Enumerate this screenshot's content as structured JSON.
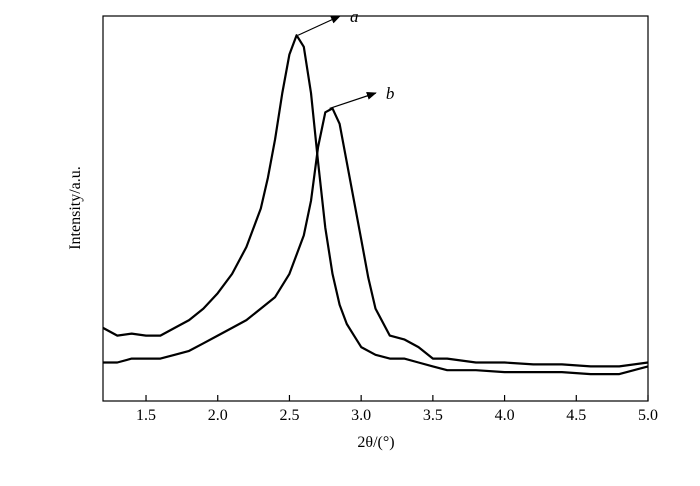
{
  "chart_data": {
    "type": "line",
    "title": "",
    "xlabel": "2θ/(°)",
    "ylabel": "Intensity/a.u.",
    "xlim": [
      1.2,
      5.0
    ],
    "ylim": [
      0,
      1
    ],
    "x_ticks": [
      1.5,
      2.0,
      2.5,
      3.0,
      3.5,
      4.0,
      4.5,
      5.0
    ],
    "x_tick_labels": [
      "1.5",
      "2.0",
      "2.5",
      "3.0",
      "3.5",
      "4.0",
      "4.5",
      "5.0"
    ],
    "y_tick_labels_shown": false,
    "grid": false,
    "legend": "none",
    "series": [
      {
        "name": "a",
        "x": [
          1.2,
          1.3,
          1.4,
          1.5,
          1.6,
          1.7,
          1.8,
          1.9,
          2.0,
          2.1,
          2.2,
          2.3,
          2.35,
          2.4,
          2.45,
          2.5,
          2.55,
          2.6,
          2.65,
          2.7,
          2.75,
          2.8,
          2.85,
          2.9,
          2.95,
          3.0,
          3.1,
          3.2,
          3.3,
          3.4,
          3.5,
          3.6,
          3.8,
          4.0,
          4.2,
          4.4,
          4.6,
          4.8,
          5.0
        ],
        "y": [
          0.19,
          0.17,
          0.175,
          0.17,
          0.17,
          0.19,
          0.21,
          0.24,
          0.28,
          0.33,
          0.4,
          0.5,
          0.58,
          0.68,
          0.8,
          0.9,
          0.95,
          0.92,
          0.8,
          0.62,
          0.45,
          0.33,
          0.25,
          0.2,
          0.17,
          0.14,
          0.12,
          0.11,
          0.11,
          0.1,
          0.09,
          0.08,
          0.08,
          0.075,
          0.075,
          0.075,
          0.07,
          0.07,
          0.09
        ]
      },
      {
        "name": "b",
        "x": [
          1.2,
          1.3,
          1.4,
          1.5,
          1.6,
          1.7,
          1.8,
          1.9,
          2.0,
          2.1,
          2.2,
          2.3,
          2.4,
          2.5,
          2.6,
          2.65,
          2.7,
          2.75,
          2.8,
          2.85,
          2.9,
          2.95,
          3.0,
          3.05,
          3.1,
          3.2,
          3.3,
          3.4,
          3.5,
          3.6,
          3.8,
          4.0,
          4.2,
          4.4,
          4.6,
          4.8,
          5.0
        ],
        "y": [
          0.1,
          0.1,
          0.11,
          0.11,
          0.11,
          0.12,
          0.13,
          0.15,
          0.17,
          0.19,
          0.21,
          0.24,
          0.27,
          0.33,
          0.43,
          0.52,
          0.66,
          0.75,
          0.76,
          0.72,
          0.62,
          0.52,
          0.42,
          0.32,
          0.24,
          0.17,
          0.16,
          0.14,
          0.11,
          0.11,
          0.1,
          0.1,
          0.095,
          0.095,
          0.09,
          0.09,
          0.1
        ]
      }
    ],
    "annotations": [
      {
        "text": "a",
        "series": "a",
        "arrow_from": [
          2.56,
          0.95
        ],
        "label_at": [
          2.95,
          1.0
        ]
      },
      {
        "text": "b",
        "series": "b",
        "arrow_from": [
          2.78,
          0.76
        ],
        "label_at": [
          3.2,
          0.8
        ]
      }
    ]
  }
}
